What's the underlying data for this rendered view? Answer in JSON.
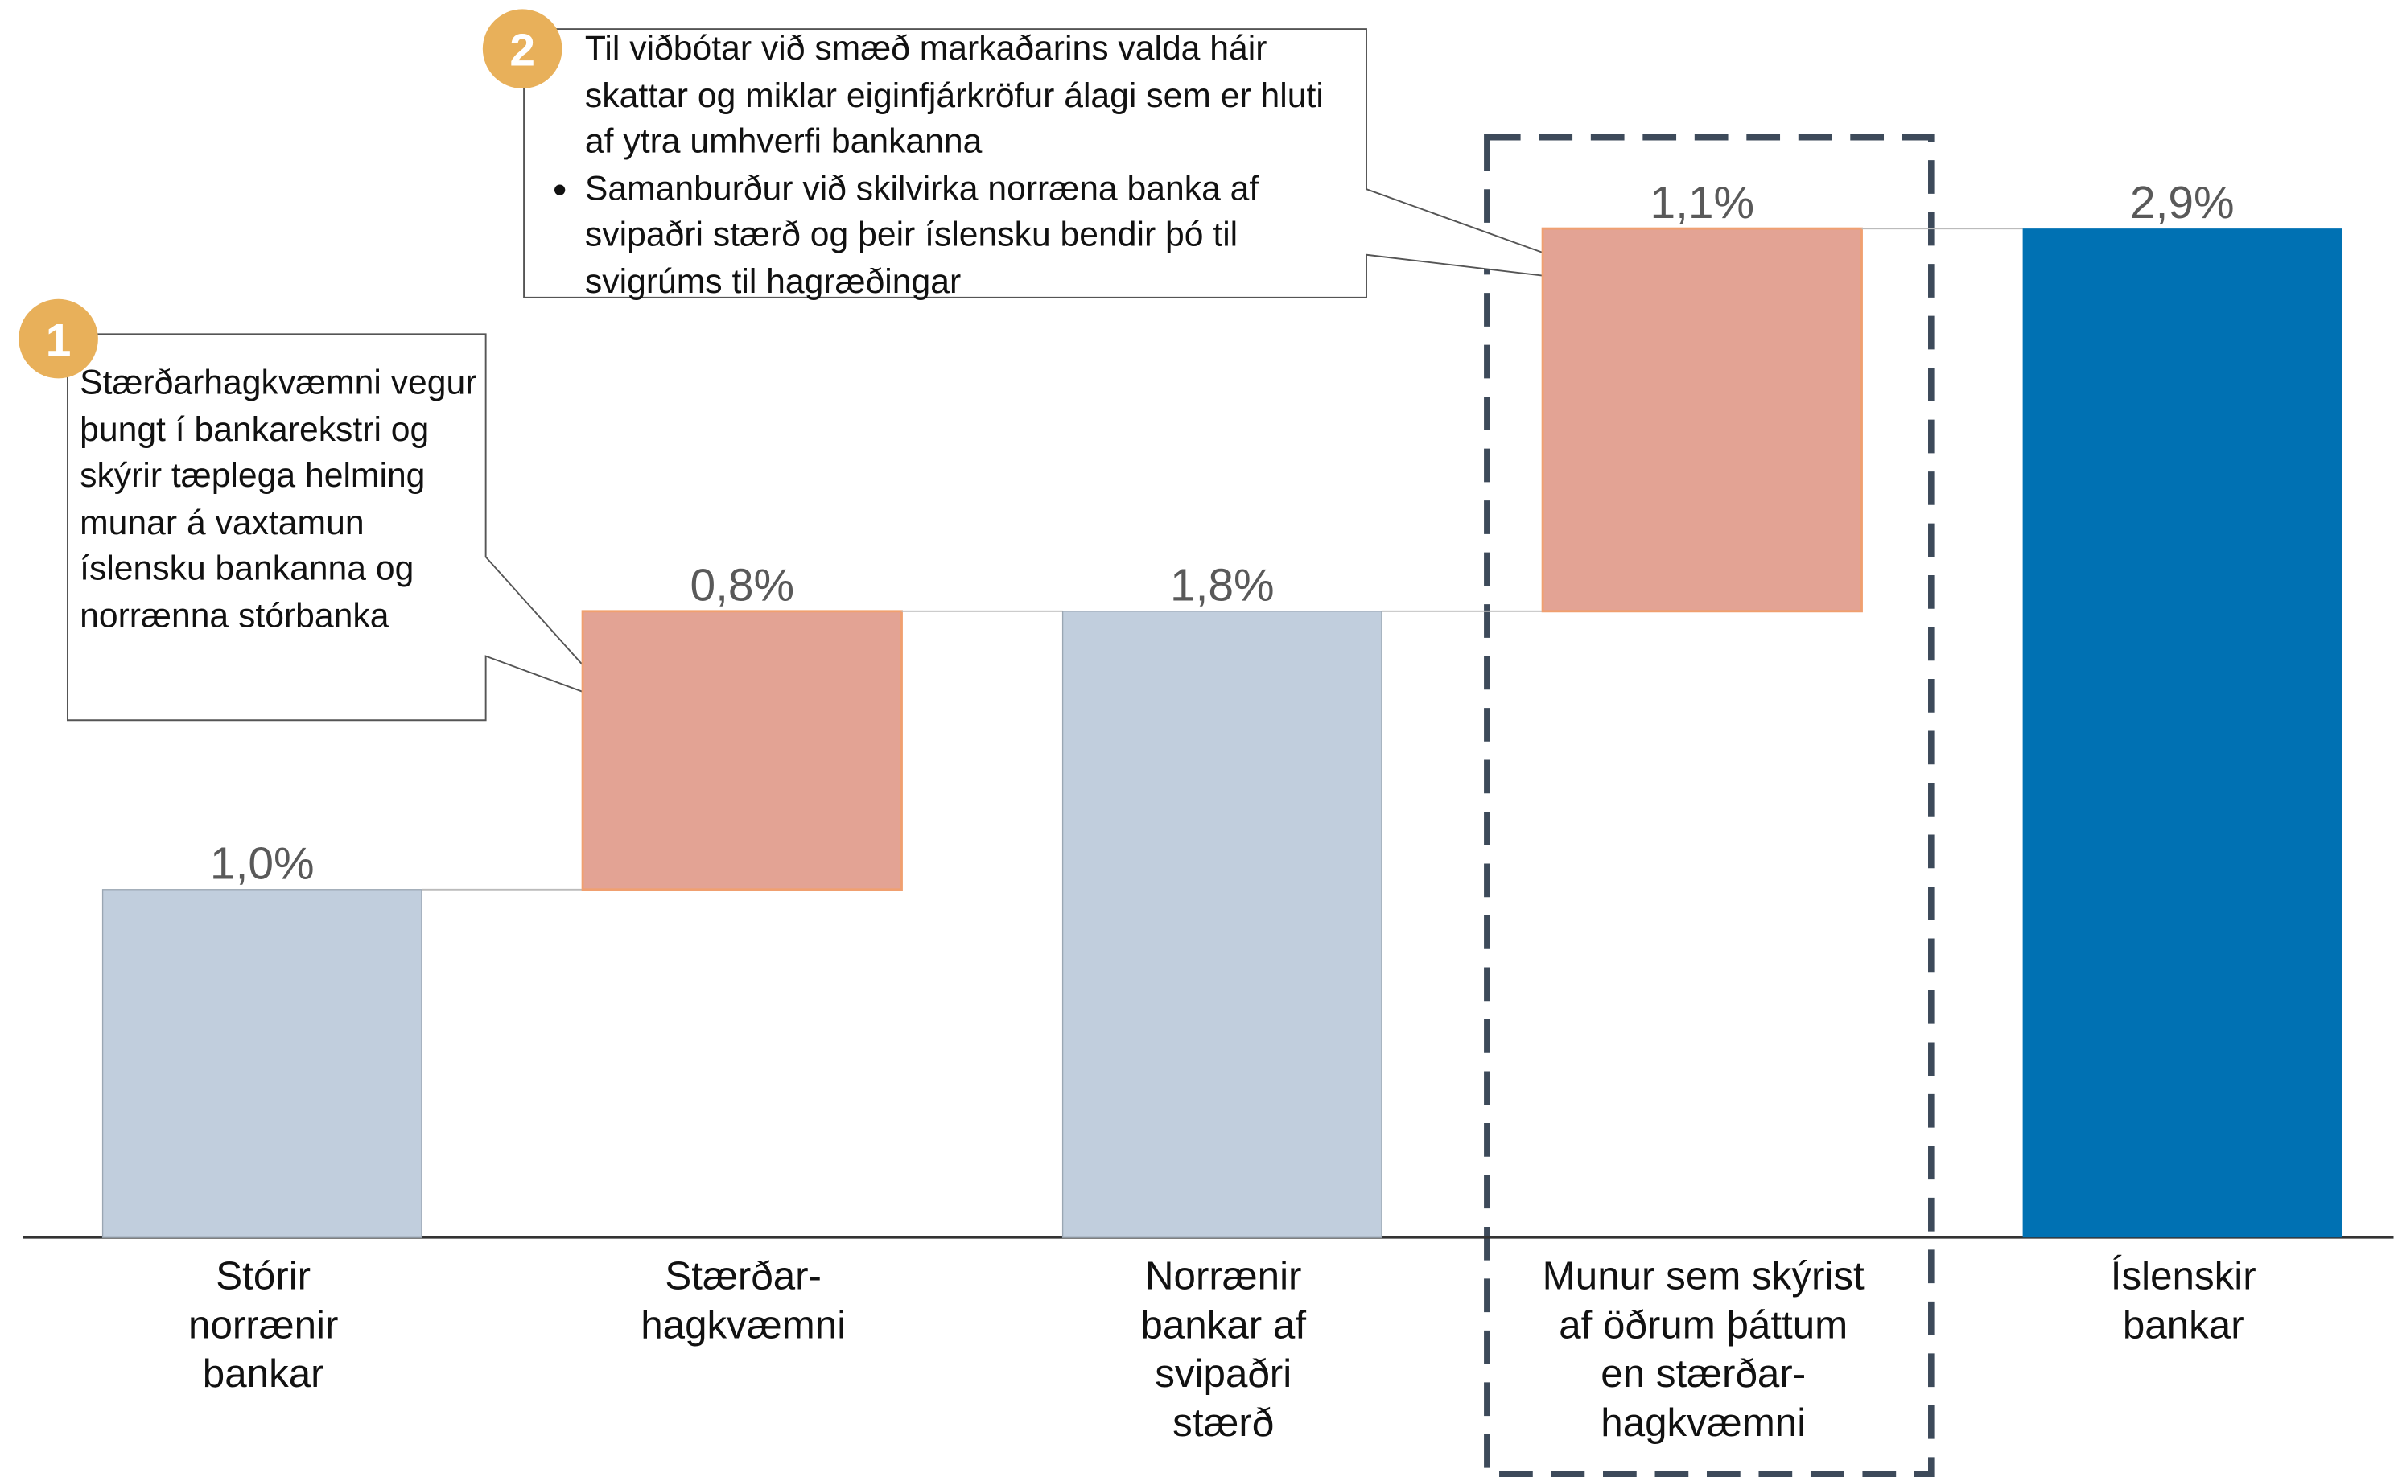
{
  "chart_data": {
    "type": "waterfall",
    "categories": [
      "Stórir\nnorrænir\nbankar",
      "Stærðar-\nhagkvæmni",
      "Norrænir\nbankar af\nsvipaðri\nstærð",
      "Munur sem skýrist\naf öðrum þáttum\nen stærðar-\nhagkvæmni",
      "Íslenskir\nbankar"
    ],
    "values": [
      1.0,
      0.8,
      1.8,
      1.1,
      2.9
    ],
    "value_labels": [
      "1,0%",
      "0,8%",
      "1,8%",
      "1,1%",
      "2,9%"
    ],
    "measure": [
      "absolute",
      "relative",
      "absolute",
      "relative",
      "absolute"
    ],
    "colors": [
      "#c1cedd",
      "#e3a394",
      "#c1cedd",
      "#e3a394",
      "#0071b3"
    ],
    "ylim": [
      0,
      3.5
    ],
    "annotations": [
      {
        "badge": "1",
        "paragraphs": [
          "Stærðarhagkvæmni vegur þungt í bankarekstri og skýrir tæplega helming munar á vaxtamun íslensku bankanna og norrænna stórbanka"
        ]
      },
      {
        "badge": "2",
        "paragraphs": [
          "Til viðbótar við smæð markaðarins valda háir skattar og miklar eiginfjárkröfur álagi sem er hluti af ytra umhverfi bankanna",
          "Samanburður við skilvirka norræna banka af svipaðri stærð og þeir íslensku bendir þó til svigrúms til hagræðingar"
        ]
      }
    ]
  }
}
